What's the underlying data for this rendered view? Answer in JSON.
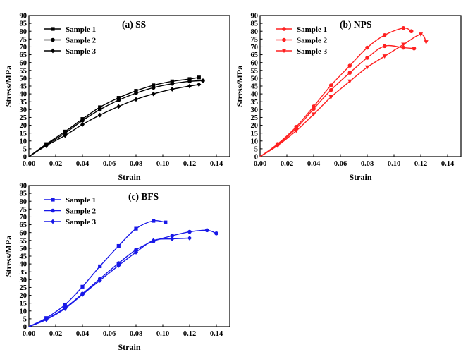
{
  "chart_data": [
    {
      "type": "line",
      "title": "(a) SS",
      "xlabel": "Strain",
      "ylabel": "Stress/MPa",
      "xlim": [
        0,
        0.15
      ],
      "ylim": [
        0,
        90
      ],
      "xticks": [
        "0.00",
        "0.02",
        "0.04",
        "0.06",
        "0.08",
        "0.10",
        "0.12",
        "0.14"
      ],
      "yticks": [
        "0",
        "5",
        "10",
        "15",
        "20",
        "25",
        "30",
        "35",
        "40",
        "45",
        "50",
        "55",
        "60",
        "65",
        "70",
        "75",
        "80",
        "85",
        "90"
      ],
      "legend_position": "top-left",
      "color": "#000000",
      "series": [
        {
          "name": "Sample 1",
          "marker": "square",
          "x": [
            0,
            0.013,
            0.027,
            0.04,
            0.053,
            0.067,
            0.08,
            0.093,
            0.107,
            0.12,
            0.127
          ],
          "y": [
            0,
            8,
            16,
            24,
            31.5,
            37.5,
            42,
            45.5,
            48,
            49.5,
            50.5
          ]
        },
        {
          "name": "Sample 2",
          "marker": "circle",
          "x": [
            0,
            0.013,
            0.027,
            0.04,
            0.053,
            0.067,
            0.08,
            0.093,
            0.107,
            0.12,
            0.13
          ],
          "y": [
            0,
            7.5,
            15,
            23,
            30,
            36,
            40.5,
            44,
            46.5,
            48,
            48.5
          ]
        },
        {
          "name": "Sample 3",
          "marker": "diamond",
          "x": [
            0,
            0.013,
            0.027,
            0.04,
            0.053,
            0.067,
            0.08,
            0.093,
            0.107,
            0.12,
            0.127
          ],
          "y": [
            0,
            7,
            13.5,
            20.5,
            26.5,
            32,
            36.5,
            40,
            43,
            45,
            46
          ]
        }
      ]
    },
    {
      "type": "line",
      "title": "(b) NPS",
      "xlabel": "Strain",
      "ylabel": "Stress/MPa",
      "xlim": [
        0,
        0.15
      ],
      "ylim": [
        0,
        90
      ],
      "xticks": [
        "0.00",
        "0.02",
        "0.04",
        "0.06",
        "0.08",
        "0.10",
        "0.12",
        "0.14"
      ],
      "yticks": [
        "0",
        "5",
        "10",
        "15",
        "20",
        "25",
        "30",
        "35",
        "40",
        "45",
        "50",
        "55",
        "60",
        "65",
        "70",
        "75",
        "80",
        "85",
        "90"
      ],
      "legend_position": "top-left",
      "color": "#ff2020",
      "series": [
        {
          "name": "Sample 1",
          "marker": "circle",
          "x": [
            0,
            0.013,
            0.027,
            0.04,
            0.053,
            0.067,
            0.08,
            0.093,
            0.107,
            0.113
          ],
          "y": [
            0,
            8,
            19,
            32,
            45.5,
            58,
            69.5,
            77.5,
            82,
            80
          ]
        },
        {
          "name": "Sample 2",
          "marker": "circle",
          "x": [
            0,
            0.013,
            0.027,
            0.04,
            0.053,
            0.067,
            0.08,
            0.093,
            0.107,
            0.115
          ],
          "y": [
            0,
            7.5,
            18,
            30.5,
            42.5,
            53.5,
            63,
            70.5,
            69.5,
            69
          ]
        },
        {
          "name": "Sample 3",
          "marker": "triangle-down",
          "x": [
            0,
            0.013,
            0.027,
            0.04,
            0.053,
            0.067,
            0.08,
            0.093,
            0.107,
            0.12,
            0.124
          ],
          "y": [
            0,
            7,
            16.5,
            27,
            38,
            48,
            57,
            64,
            71.5,
            78,
            73
          ]
        }
      ]
    },
    {
      "type": "line",
      "title": "(c) BFS",
      "xlabel": "Strain",
      "ylabel": "Stress/MPa",
      "xlim": [
        0,
        0.15
      ],
      "ylim": [
        0,
        90
      ],
      "xticks": [
        "0.00",
        "0.02",
        "0.04",
        "0.06",
        "0.08",
        "0.10",
        "0.12",
        "0.14"
      ],
      "yticks": [
        "0",
        "5",
        "10",
        "15",
        "20",
        "25",
        "30",
        "35",
        "40",
        "45",
        "50",
        "55",
        "60",
        "65",
        "70",
        "75",
        "80",
        "85",
        "90"
      ],
      "legend_position": "top-left",
      "color": "#1818e8",
      "series": [
        {
          "name": "Sample 1",
          "marker": "square",
          "x": [
            0,
            0.013,
            0.027,
            0.04,
            0.053,
            0.067,
            0.08,
            0.093,
            0.102
          ],
          "y": [
            0,
            5.5,
            14,
            25.5,
            38.5,
            51.5,
            62.5,
            67.5,
            66.5
          ]
        },
        {
          "name": "Sample 2",
          "marker": "circle",
          "x": [
            0,
            0.013,
            0.027,
            0.04,
            0.053,
            0.067,
            0.08,
            0.093,
            0.107,
            0.12,
            0.133,
            0.14
          ],
          "y": [
            0,
            4.8,
            12,
            21,
            30.5,
            40.5,
            49,
            54.5,
            58,
            60.5,
            61.5,
            59.5
          ]
        },
        {
          "name": "Sample 3",
          "marker": "diamond",
          "x": [
            0,
            0.013,
            0.027,
            0.04,
            0.053,
            0.067,
            0.08,
            0.093,
            0.107,
            0.12
          ],
          "y": [
            0,
            4.5,
            11.5,
            20.5,
            29.5,
            39,
            47.5,
            55,
            56,
            56.5
          ]
        }
      ]
    }
  ]
}
